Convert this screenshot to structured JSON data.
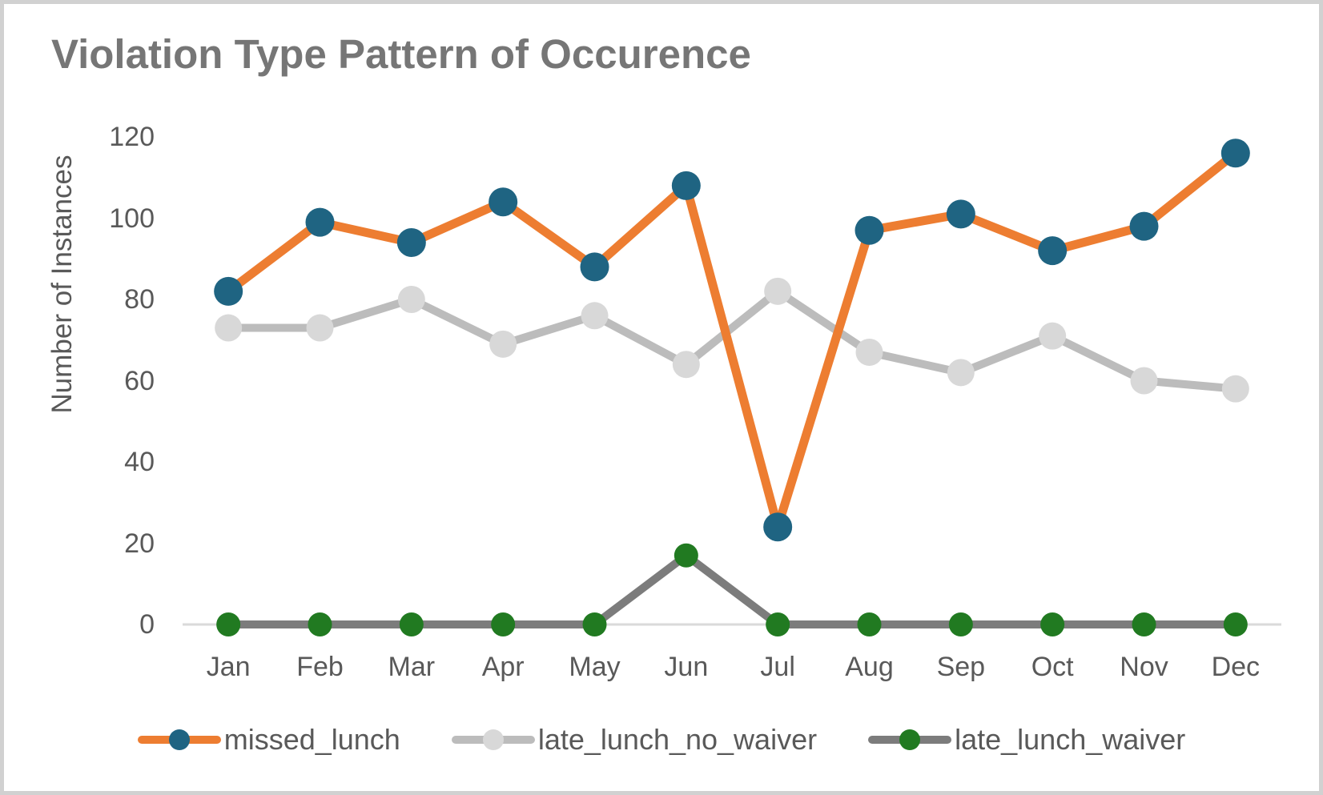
{
  "colors": {
    "title": "#767676",
    "text": "#595959",
    "axis_line": "#DADADA",
    "border": "#D1D1D1",
    "orange": "#ED7D31",
    "blue_marker": "#1F6482",
    "light_gray_line": "#BCBCBC",
    "light_gray_marker": "#D8D8D8",
    "dark_gray_line": "#7C7C7C",
    "green_marker": "#217A21"
  },
  "chart_data": {
    "type": "line",
    "title": "Violation Type Pattern of Occurence",
    "ylabel": "Number of Instances",
    "xlabel": "",
    "categories": [
      "Jan",
      "Feb",
      "Mar",
      "Apr",
      "May",
      "Jun",
      "Jul",
      "Aug",
      "Sep",
      "Oct",
      "Nov",
      "Dec"
    ],
    "yticks": [
      0,
      20,
      40,
      60,
      80,
      100,
      120
    ],
    "ylim": [
      0,
      120
    ],
    "grid": false,
    "legend_position": "bottom",
    "series": [
      {
        "name": "missed_lunch",
        "line_color": "#ED7D31",
        "marker_color": "#1F6482",
        "values": [
          82,
          99,
          94,
          104,
          88,
          108,
          24,
          97,
          101,
          92,
          98,
          116
        ]
      },
      {
        "name": "late_lunch_no_waiver",
        "line_color": "#BCBCBC",
        "marker_color": "#D8D8D8",
        "values": [
          73,
          73,
          80,
          69,
          76,
          64,
          82,
          67,
          62,
          71,
          60,
          58
        ]
      },
      {
        "name": "late_lunch_waiver",
        "line_color": "#7C7C7C",
        "marker_color": "#217A21",
        "values": [
          0,
          0,
          0,
          0,
          0,
          17,
          0,
          0,
          0,
          0,
          0,
          0
        ]
      }
    ]
  }
}
